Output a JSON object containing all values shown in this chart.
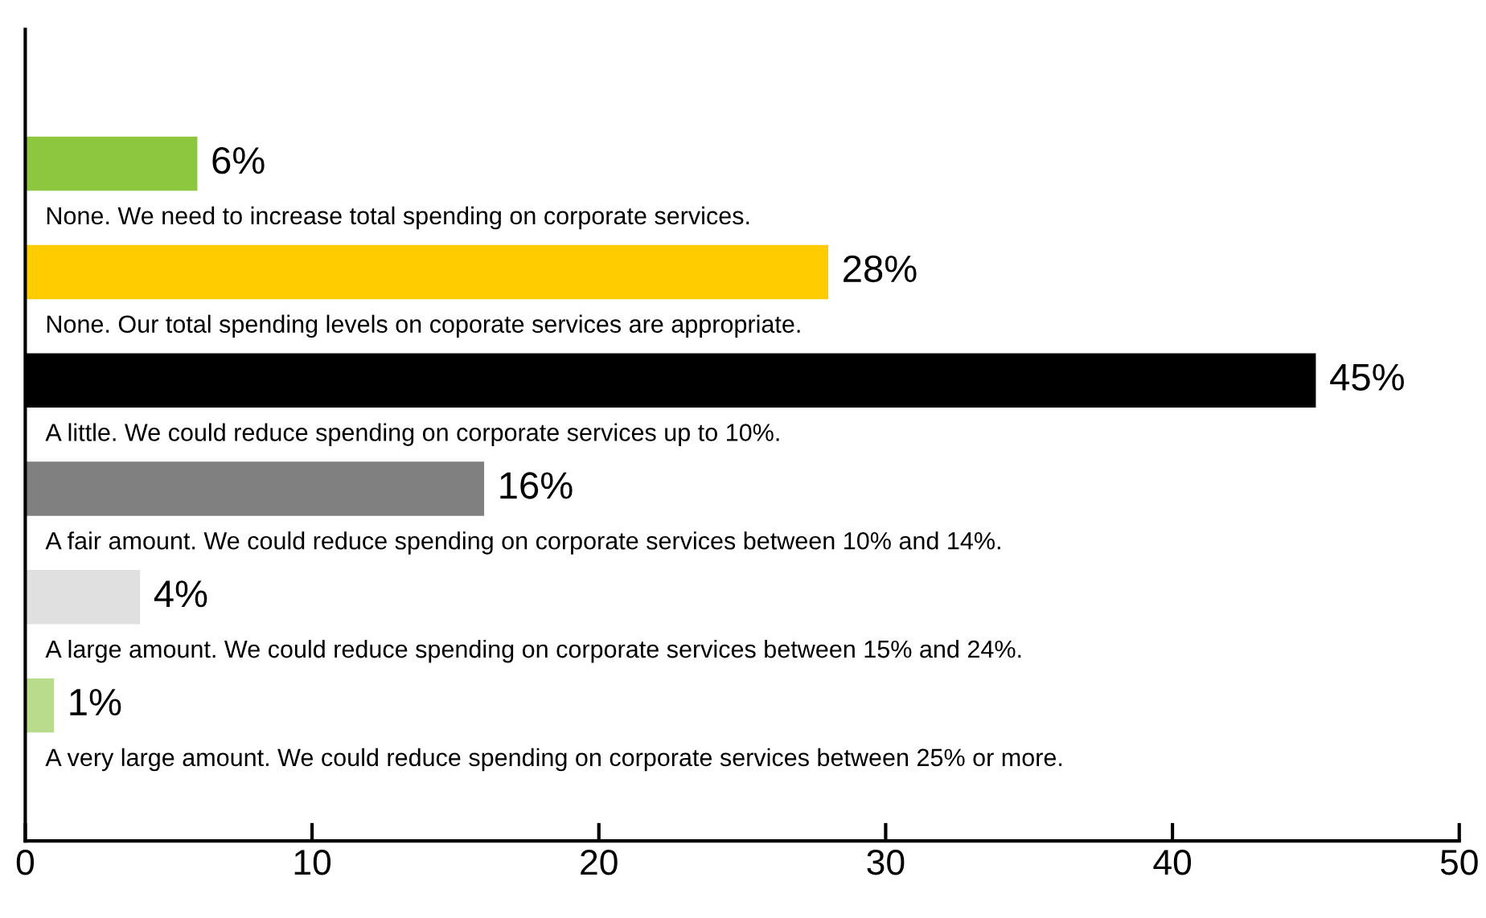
{
  "chart_data": {
    "type": "bar",
    "orientation": "horizontal",
    "categories": [
      "None. We need to increase total spending on corporate services.",
      "None. Our total spending levels on coporate services are appropriate.",
      "A little. We could reduce spending on corporate services up to 10%.",
      "A fair amount. We could reduce spending on corporate services between 10% and 14%.",
      "A large amount. We could reduce spending on corporate services between 15% and 24%.",
      "A very large amount. We could reduce spending on corporate services between 25% or more."
    ],
    "values": [
      6,
      28,
      45,
      16,
      4,
      1
    ],
    "colors": [
      "#8dc63f",
      "#ffcc00",
      "#000000",
      "#808080",
      "#e0e0e0",
      "#b8dc8c"
    ],
    "value_labels": [
      "6%",
      "28%",
      "45%",
      "16%",
      "4%",
      "1%"
    ],
    "xlim": [
      0,
      50
    ],
    "xticks": [
      0,
      10,
      20,
      30,
      40,
      50
    ],
    "grid": false,
    "legend": false
  }
}
